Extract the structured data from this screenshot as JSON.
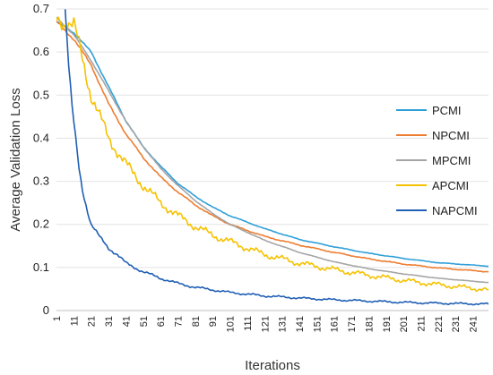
{
  "chart_data": {
    "type": "line",
    "title": "",
    "xlabel": "Iterations",
    "ylabel": "Average Validation Loss",
    "xlim": [
      1,
      250
    ],
    "ylim": [
      0,
      0.7
    ],
    "yticks": [
      0,
      0.1,
      0.2,
      0.3,
      0.4,
      0.5,
      0.6,
      0.7
    ],
    "ytick_labels": [
      "0",
      "0.1",
      "0.2",
      "0.3",
      "0.4",
      "0.5",
      "0.6",
      "0.7"
    ],
    "xticks": [
      1,
      11,
      21,
      31,
      41,
      51,
      61,
      71,
      81,
      91,
      101,
      111,
      121,
      131,
      141,
      151,
      161,
      171,
      181,
      191,
      201,
      211,
      221,
      231,
      241
    ],
    "xtick_labels": [
      "1",
      "11",
      "21",
      "31",
      "41",
      "51",
      "61",
      "71",
      "81",
      "91",
      "101",
      "111",
      "121",
      "131",
      "141",
      "151",
      "161",
      "171",
      "181",
      "191",
      "201",
      "211",
      "221",
      "231",
      "241"
    ],
    "grid": "horizontal",
    "legend": "right",
    "series": [
      {
        "name": "PCMI",
        "color": "#2f9fd8",
        "x": [
          1,
          11,
          21,
          31,
          41,
          51,
          61,
          71,
          81,
          91,
          101,
          121,
          141,
          161,
          181,
          201,
          221,
          250
        ],
        "y": [
          0.67,
          0.645,
          0.6,
          0.52,
          0.44,
          0.38,
          0.335,
          0.295,
          0.265,
          0.24,
          0.22,
          0.19,
          0.165,
          0.148,
          0.133,
          0.121,
          0.111,
          0.103
        ]
      },
      {
        "name": "NPCMI",
        "color": "#ed7d31",
        "x": [
          1,
          11,
          21,
          31,
          41,
          51,
          61,
          71,
          81,
          91,
          101,
          121,
          141,
          161,
          181,
          201,
          221,
          250
        ],
        "y": [
          0.67,
          0.63,
          0.57,
          0.48,
          0.41,
          0.355,
          0.31,
          0.275,
          0.245,
          0.22,
          0.2,
          0.172,
          0.152,
          0.135,
          0.12,
          0.108,
          0.099,
          0.09
        ]
      },
      {
        "name": "MPCMI",
        "color": "#a5a5a5",
        "x": [
          1,
          11,
          21,
          31,
          41,
          51,
          61,
          71,
          81,
          91,
          101,
          121,
          141,
          161,
          181,
          201,
          221,
          250
        ],
        "y": [
          0.68,
          0.64,
          0.58,
          0.51,
          0.44,
          0.38,
          0.33,
          0.29,
          0.255,
          0.225,
          0.2,
          0.163,
          0.135,
          0.113,
          0.097,
          0.085,
          0.075,
          0.065
        ]
      },
      {
        "name": "APCMI",
        "color": "#f5c200",
        "x": [
          1,
          11,
          15,
          21,
          31,
          41,
          51,
          61,
          71,
          81,
          91,
          101,
          121,
          141,
          161,
          181,
          201,
          221,
          250
        ],
        "y": [
          0.68,
          0.66,
          0.6,
          0.5,
          0.4,
          0.34,
          0.29,
          0.25,
          0.22,
          0.195,
          0.175,
          0.16,
          0.13,
          0.11,
          0.095,
          0.082,
          0.07,
          0.06,
          0.048
        ]
      },
      {
        "name": "NAPCMI",
        "color": "#1f5fb4",
        "x": [
          6,
          8,
          10,
          12,
          14,
          16,
          19,
          21,
          26,
          31,
          36,
          41,
          51,
          61,
          71,
          81,
          101,
          121,
          141,
          161,
          181,
          201,
          221,
          250
        ],
        "y": [
          0.7,
          0.57,
          0.47,
          0.4,
          0.33,
          0.28,
          0.23,
          0.2,
          0.17,
          0.145,
          0.13,
          0.11,
          0.09,
          0.075,
          0.063,
          0.054,
          0.042,
          0.034,
          0.029,
          0.025,
          0.022,
          0.019,
          0.017,
          0.015
        ]
      }
    ]
  }
}
